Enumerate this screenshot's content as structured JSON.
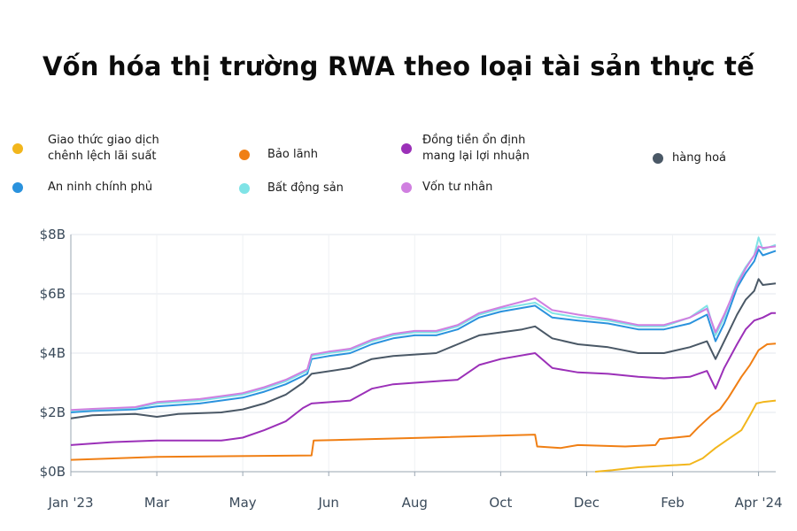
{
  "title": "Vốn hóa thị trường RWA theo loại tài sản thực tế",
  "legend": [
    {
      "label": "Giao thức giao dịch\nchênh lệch lãi suất",
      "color": "#f2b61c"
    },
    {
      "label": "Bảo lãnh",
      "color": "#f07f14"
    },
    {
      "label": "Đồng tiền ổn định\nmang lại lợi nhuận",
      "color": "#9b30b8"
    },
    {
      "label": "hàng hoá",
      "color": "#4a5866"
    },
    {
      "label": "An ninh chính phủ",
      "color": "#2a92dd"
    },
    {
      "label": "Bất động sản",
      "color": "#7fe3e6"
    },
    {
      "label": "Vốn tư nhân",
      "color": "#d07fe0"
    }
  ],
  "chart_data": {
    "type": "line",
    "title": "Vốn hóa thị trường RWA theo loại tài sản thực tế",
    "ylim": [
      0,
      8
    ],
    "y_ticks": [
      0,
      2,
      4,
      6,
      8
    ],
    "y_tick_labels": [
      "$0B",
      "$2B",
      "$4B",
      "$6B",
      "$8B"
    ],
    "x_range": [
      0,
      16.4
    ],
    "x_ticks": [
      0,
      2,
      4,
      6,
      8,
      10,
      12,
      14,
      16
    ],
    "x_tick_labels": [
      "Jan '23",
      "Mar",
      "May",
      "Jun",
      "Aug",
      "Oct",
      "Dec",
      "Feb",
      "Apr '24"
    ],
    "grid": true,
    "series": [
      {
        "name": "Giao thức giao dịch chênh lệch lãi suất",
        "color": "#f2b61c",
        "points": [
          [
            12.2,
            0
          ],
          [
            12.6,
            0.05
          ],
          [
            13.2,
            0.15
          ],
          [
            14.4,
            0.25
          ],
          [
            14.7,
            0.45
          ],
          [
            15,
            0.8
          ],
          [
            15.3,
            1.1
          ],
          [
            15.6,
            1.4
          ],
          [
            15.8,
            1.9
          ],
          [
            15.95,
            2.3
          ],
          [
            16.1,
            2.35
          ],
          [
            16.4,
            2.4
          ]
        ]
      },
      {
        "name": "Bảo lãnh",
        "color": "#f07f14",
        "points": [
          [
            0,
            0.4
          ],
          [
            2,
            0.5
          ],
          [
            5.6,
            0.55
          ],
          [
            5.65,
            1.05
          ],
          [
            7,
            1.1
          ],
          [
            8.3,
            1.15
          ],
          [
            10.8,
            1.25
          ],
          [
            10.85,
            0.85
          ],
          [
            11.4,
            0.8
          ],
          [
            11.8,
            0.9
          ],
          [
            12.9,
            0.85
          ],
          [
            13.6,
            0.9
          ],
          [
            13.7,
            1.1
          ],
          [
            14.4,
            1.2
          ],
          [
            14.6,
            1.5
          ],
          [
            14.9,
            1.9
          ],
          [
            15.1,
            2.1
          ],
          [
            15.3,
            2.5
          ],
          [
            15.6,
            3.2
          ],
          [
            15.8,
            3.6
          ],
          [
            16,
            4.1
          ],
          [
            16.2,
            4.3
          ],
          [
            16.4,
            4.32
          ]
        ]
      },
      {
        "name": "Đồng tiền ổn định mang lại lợi nhuận",
        "color": "#9b30b8",
        "points": [
          [
            0,
            0.9
          ],
          [
            1,
            1
          ],
          [
            2,
            1.05
          ],
          [
            3.5,
            1.05
          ],
          [
            4,
            1.15
          ],
          [
            4.5,
            1.4
          ],
          [
            5,
            1.7
          ],
          [
            5.4,
            2.15
          ],
          [
            5.6,
            2.3
          ],
          [
            6.5,
            2.4
          ],
          [
            7,
            2.8
          ],
          [
            7.5,
            2.95
          ],
          [
            8,
            3.0
          ],
          [
            9,
            3.1
          ],
          [
            9.5,
            3.6
          ],
          [
            10,
            3.8
          ],
          [
            10.8,
            4.0
          ],
          [
            11.2,
            3.5
          ],
          [
            11.8,
            3.35
          ],
          [
            12.5,
            3.3
          ],
          [
            13.2,
            3.2
          ],
          [
            13.8,
            3.15
          ],
          [
            14.4,
            3.2
          ],
          [
            14.8,
            3.4
          ],
          [
            15,
            2.8
          ],
          [
            15.2,
            3.5
          ],
          [
            15.5,
            4.3
          ],
          [
            15.7,
            4.8
          ],
          [
            15.9,
            5.1
          ],
          [
            16.1,
            5.2
          ],
          [
            16.3,
            5.35
          ],
          [
            16.4,
            5.35
          ]
        ]
      },
      {
        "name": "hàng hoá",
        "color": "#4a5866",
        "points": [
          [
            0,
            1.8
          ],
          [
            0.5,
            1.9
          ],
          [
            1.5,
            1.95
          ],
          [
            2,
            1.85
          ],
          [
            2.5,
            1.95
          ],
          [
            3.5,
            2.0
          ],
          [
            4,
            2.1
          ],
          [
            4.5,
            2.3
          ],
          [
            5,
            2.6
          ],
          [
            5.4,
            3.0
          ],
          [
            5.6,
            3.3
          ],
          [
            6.5,
            3.5
          ],
          [
            7,
            3.8
          ],
          [
            7.5,
            3.9
          ],
          [
            8.5,
            4.0
          ],
          [
            9,
            4.3
          ],
          [
            9.5,
            4.6
          ],
          [
            10.5,
            4.8
          ],
          [
            10.8,
            4.9
          ],
          [
            11.2,
            4.5
          ],
          [
            11.8,
            4.3
          ],
          [
            12.5,
            4.2
          ],
          [
            13.2,
            4.0
          ],
          [
            13.8,
            4.0
          ],
          [
            14.4,
            4.2
          ],
          [
            14.8,
            4.4
          ],
          [
            15,
            3.8
          ],
          [
            15.2,
            4.4
          ],
          [
            15.5,
            5.3
          ],
          [
            15.7,
            5.8
          ],
          [
            15.9,
            6.1
          ],
          [
            16.0,
            6.5
          ],
          [
            16.1,
            6.3
          ],
          [
            16.4,
            6.35
          ]
        ]
      },
      {
        "name": "An ninh chính phủ",
        "color": "#2a92dd",
        "points": [
          [
            0,
            2.0
          ],
          [
            0.5,
            2.05
          ],
          [
            1.5,
            2.1
          ],
          [
            2,
            2.2
          ],
          [
            3,
            2.3
          ],
          [
            4,
            2.5
          ],
          [
            4.5,
            2.7
          ],
          [
            5,
            2.95
          ],
          [
            5.5,
            3.3
          ],
          [
            5.6,
            3.8
          ],
          [
            6,
            3.9
          ],
          [
            6.5,
            4.0
          ],
          [
            7,
            4.3
          ],
          [
            7.5,
            4.5
          ],
          [
            8,
            4.6
          ],
          [
            8.5,
            4.6
          ],
          [
            9,
            4.8
          ],
          [
            9.5,
            5.2
          ],
          [
            10,
            5.4
          ],
          [
            10.8,
            5.6
          ],
          [
            11.2,
            5.2
          ],
          [
            11.8,
            5.1
          ],
          [
            12.5,
            5.0
          ],
          [
            13.2,
            4.8
          ],
          [
            13.8,
            4.8
          ],
          [
            14.4,
            5.0
          ],
          [
            14.8,
            5.3
          ],
          [
            15,
            4.4
          ],
          [
            15.2,
            5.0
          ],
          [
            15.5,
            6.2
          ],
          [
            15.7,
            6.7
          ],
          [
            15.9,
            7.1
          ],
          [
            16.0,
            7.5
          ],
          [
            16.1,
            7.3
          ],
          [
            16.4,
            7.45
          ]
        ]
      },
      {
        "name": "Bất động sản",
        "color": "#7fe3e6",
        "points": [
          [
            0,
            2.05
          ],
          [
            0.5,
            2.1
          ],
          [
            1.5,
            2.15
          ],
          [
            2,
            2.3
          ],
          [
            3,
            2.4
          ],
          [
            4,
            2.6
          ],
          [
            4.5,
            2.8
          ],
          [
            5,
            3.05
          ],
          [
            5.5,
            3.4
          ],
          [
            5.6,
            3.9
          ],
          [
            6,
            4.0
          ],
          [
            6.5,
            4.1
          ],
          [
            7,
            4.4
          ],
          [
            7.5,
            4.6
          ],
          [
            8,
            4.7
          ],
          [
            8.5,
            4.7
          ],
          [
            9,
            4.9
          ],
          [
            9.5,
            5.3
          ],
          [
            10,
            5.5
          ],
          [
            10.8,
            5.7
          ],
          [
            11.2,
            5.35
          ],
          [
            11.8,
            5.2
          ],
          [
            12.5,
            5.1
          ],
          [
            13.2,
            4.9
          ],
          [
            13.8,
            4.9
          ],
          [
            14.4,
            5.2
          ],
          [
            14.8,
            5.6
          ],
          [
            15,
            4.6
          ],
          [
            15.2,
            5.2
          ],
          [
            15.5,
            6.4
          ],
          [
            15.7,
            6.9
          ],
          [
            15.9,
            7.3
          ],
          [
            16.0,
            7.9
          ],
          [
            16.1,
            7.5
          ],
          [
            16.4,
            7.65
          ]
        ]
      },
      {
        "name": "Vốn tư nhân",
        "color": "#d07fe0",
        "points": [
          [
            0,
            2.08
          ],
          [
            0.5,
            2.12
          ],
          [
            1.5,
            2.18
          ],
          [
            2,
            2.35
          ],
          [
            3,
            2.45
          ],
          [
            4,
            2.65
          ],
          [
            4.5,
            2.85
          ],
          [
            5,
            3.1
          ],
          [
            5.5,
            3.45
          ],
          [
            5.6,
            3.95
          ],
          [
            6,
            4.05
          ],
          [
            6.5,
            4.15
          ],
          [
            7,
            4.45
          ],
          [
            7.5,
            4.65
          ],
          [
            8,
            4.75
          ],
          [
            8.5,
            4.75
          ],
          [
            9,
            4.95
          ],
          [
            9.5,
            5.35
          ],
          [
            10,
            5.55
          ],
          [
            10.8,
            5.85
          ],
          [
            11.2,
            5.45
          ],
          [
            11.8,
            5.3
          ],
          [
            12.5,
            5.15
          ],
          [
            13.2,
            4.95
          ],
          [
            13.8,
            4.95
          ],
          [
            14.4,
            5.2
          ],
          [
            14.8,
            5.5
          ],
          [
            15,
            4.7
          ],
          [
            15.2,
            5.3
          ],
          [
            15.5,
            6.3
          ],
          [
            15.7,
            6.85
          ],
          [
            15.9,
            7.3
          ],
          [
            16.0,
            7.6
          ],
          [
            16.1,
            7.55
          ],
          [
            16.4,
            7.6
          ]
        ]
      }
    ]
  }
}
